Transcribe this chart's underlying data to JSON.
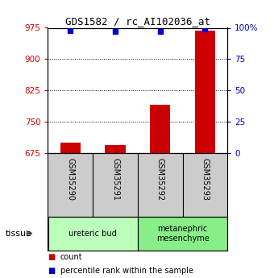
{
  "title": "GDS1582 / rc_AI102036_at",
  "samples": [
    "GSM35290",
    "GSM35291",
    "GSM35292",
    "GSM35293"
  ],
  "counts": [
    700,
    694,
    790,
    968
  ],
  "percentiles": [
    97.5,
    97.0,
    97.2,
    99.0
  ],
  "ylim_left": [
    675,
    975
  ],
  "ylim_right": [
    0,
    100
  ],
  "yticks_left": [
    675,
    750,
    825,
    900,
    975
  ],
  "yticks_right": [
    0,
    25,
    50,
    75,
    100
  ],
  "ytick_labels_right": [
    "0",
    "25",
    "50",
    "75",
    "100%"
  ],
  "bar_color": "#cc0000",
  "square_color": "#0000cc",
  "bar_bottom": 675,
  "groups": [
    {
      "label": "ureteric bud",
      "samples": [
        0,
        1
      ],
      "color": "#bbffbb"
    },
    {
      "label": "metanephric\nmesenchyme",
      "samples": [
        2,
        3
      ],
      "color": "#88ee88"
    }
  ],
  "tissue_label": "tissue",
  "legend_count": "count",
  "legend_percentile": "percentile rank within the sample",
  "label_area_color": "#cccccc",
  "plot_bg_color": "#ffffff"
}
